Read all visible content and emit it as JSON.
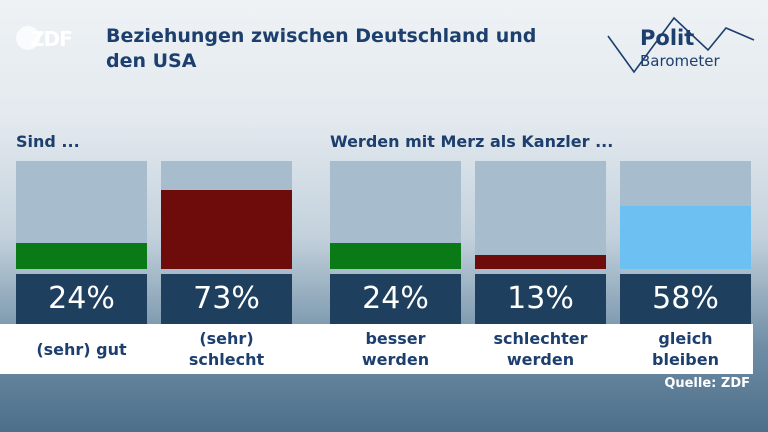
{
  "header": {
    "channel_logo_text": "ZDF",
    "title": "Beziehungen zwischen Deutschland und den USA",
    "brand_line1": "Polit",
    "brand_line2": "Barometer"
  },
  "groups": [
    "Sind ...",
    "Werden mit Merz als Kanzler ..."
  ],
  "source": "Quelle: ZDF",
  "colors": {
    "good": "#0a7a17",
    "bad": "#6e0c0c",
    "neutral": "#6cc0f2",
    "empty": "#a7bccc",
    "value_box": "#1e3f5e",
    "title": "#1d3f6e"
  },
  "chart_data": {
    "type": "bar",
    "title": "Beziehungen zwischen Deutschland und den USA",
    "ylim": [
      0,
      100
    ],
    "unit": "%",
    "categories": [
      "(sehr) gut",
      "(sehr) schlecht",
      "besser werden",
      "schlechter werden",
      "gleich bleiben"
    ],
    "values": [
      24,
      73,
      24,
      13,
      58
    ],
    "value_labels": [
      "24%",
      "73%",
      "24%",
      "13%",
      "58%"
    ],
    "bar_colors": [
      "#0a7a17",
      "#6e0c0c",
      "#0a7a17",
      "#6e0c0c",
      "#6cc0f2"
    ],
    "category_lines": [
      [
        "(sehr) gut"
      ],
      [
        "(sehr)",
        "schlecht"
      ],
      [
        "besser",
        "werden"
      ],
      [
        "schlechter",
        "werden"
      ],
      [
        "gleich",
        "bleiben"
      ]
    ]
  }
}
